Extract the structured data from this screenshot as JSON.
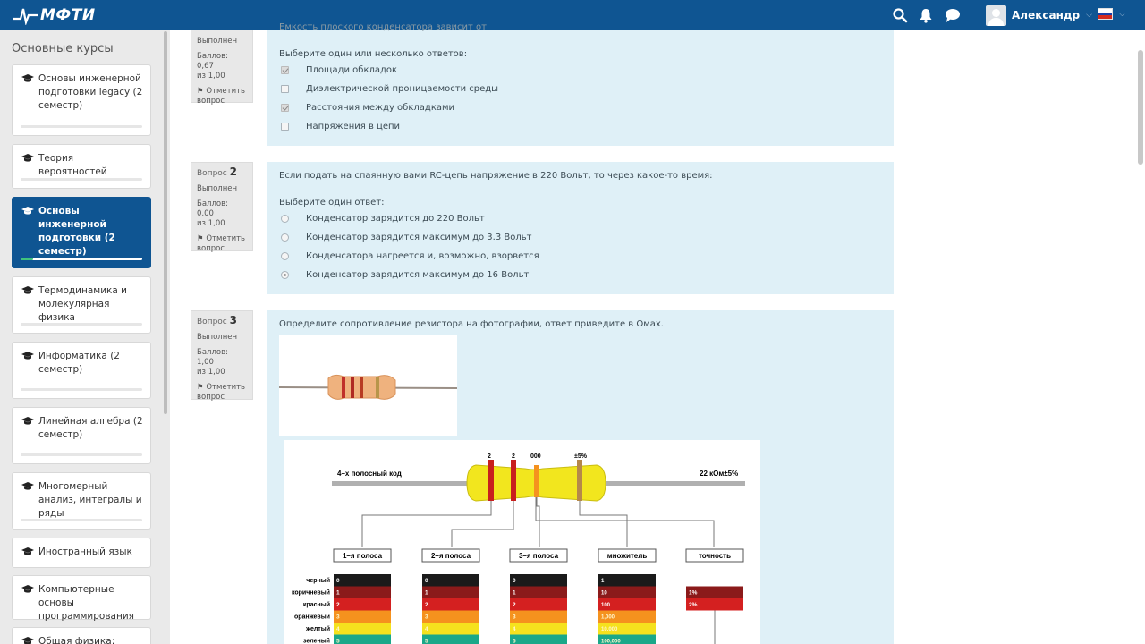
{
  "header": {
    "logo_text": "МФТИ",
    "user_name": "Александр",
    "brand_color": "#0f5592"
  },
  "sidebar": {
    "title": "Основные курсы",
    "items": [
      {
        "label": "Основы инженерной подготовки legacy (2 семестр)"
      },
      {
        "label": "Теория вероятностей"
      },
      {
        "label": "Основы инженерной подготовки (2 семестр)",
        "active": true
      },
      {
        "label": "Термодинамика и молекулярная физика"
      },
      {
        "label": "Информатика (2 семестр)"
      },
      {
        "label": "Линейная алгебра (2 семестр)"
      },
      {
        "label": "Многомерный анализ, интегралы и ряды"
      },
      {
        "label": "Иностранный язык"
      },
      {
        "label": "Компьютерные основы программирования"
      },
      {
        "label": "Общая физика:"
      }
    ]
  },
  "questions": [
    {
      "number": "",
      "status": "Выполнен",
      "score_line1": "Баллов: 0,67",
      "score_line2": "из 1,00",
      "flag_line1": "Отметить",
      "flag_line2": "вопрос",
      "cut_text": "Емкость плоского конденсатора зависит от",
      "prompt": "Выберите один или несколько ответов:",
      "options": [
        {
          "label": "Площади обкладок",
          "checked": true
        },
        {
          "label": "Диэлектрической проницаемости среды",
          "checked": false
        },
        {
          "label": "Расстояния между обкладками",
          "checked": true
        },
        {
          "label": "Напряжения в цепи",
          "checked": false
        }
      ]
    },
    {
      "prefix": "Вопрос",
      "number": "2",
      "status": "Выполнен",
      "score_line1": "Баллов: 0,00",
      "score_line2": "из 1,00",
      "flag_line1": "Отметить",
      "flag_line2": "вопрос",
      "text": "Если подать на спаянную вами RC-цепь напряжение в 220 Вольт, то через какое-то время:",
      "prompt": "Выберите один ответ:",
      "options": [
        {
          "label": "Конденсатор зарядится до 220 Вольт",
          "checked": false
        },
        {
          "label": "Конденсатор зарядится максимум до 3.3 Вольт",
          "checked": false
        },
        {
          "label": "Конденсатора нагреется и, возможно, взорвется",
          "checked": false
        },
        {
          "label": "Конденсатор зарядится максимум до 16 Вольт",
          "checked": true
        }
      ]
    },
    {
      "prefix": "Вопрос",
      "number": "3",
      "status": "Выполнен",
      "score_line1": "Баллов: 1,00",
      "score_line2": "из 1,00",
      "flag_line1": "Отметить",
      "flag_line2": "вопрос",
      "text": "Определите сопротивление резистора на фотографии, ответ приведите в Омах."
    }
  ],
  "resistor_chart": {
    "code_label": "4–х полосный код",
    "value_label": "22 кОм±5%",
    "band_values": [
      "2",
      "2",
      "000",
      "±5%"
    ],
    "columns": [
      "1–я полоса",
      "2–я полоса",
      "3–я полоса",
      "множитель",
      "точность"
    ],
    "color_names": [
      "черный",
      "коричневый",
      "красный",
      "оранжевый",
      "желтый",
      "зеленый"
    ],
    "digits": [
      "0",
      "1",
      "2",
      "3",
      "4",
      "5"
    ],
    "multipliers": [
      "1",
      "10",
      "100",
      "1,000",
      "10,000",
      "100,000"
    ],
    "tolerances": [
      "1%",
      "2%"
    ],
    "colors": [
      "#1a1a1a",
      "#8b1a1a",
      "#d42020",
      "#f5921e",
      "#f5e21e",
      "#1aa889"
    ]
  }
}
